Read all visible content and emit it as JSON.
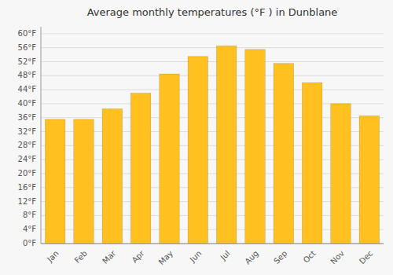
{
  "chart_data": {
    "type": "bar",
    "title": "Average monthly temperatures (°F ) in Dunblane",
    "categories": [
      "Jan",
      "Feb",
      "Mar",
      "Apr",
      "May",
      "Jun",
      "Jul",
      "Aug",
      "Sep",
      "Oct",
      "Nov",
      "Dec"
    ],
    "values": [
      35.5,
      35.5,
      38.5,
      43.0,
      48.5,
      53.5,
      56.5,
      55.5,
      51.5,
      46.0,
      40.0,
      36.5
    ],
    "color": "#FFC020",
    "ylim": [
      0,
      62
    ],
    "yticks": [
      {
        "value": 0,
        "label": "0°F"
      },
      {
        "value": 4,
        "label": "4°F"
      },
      {
        "value": 8,
        "label": "8°F"
      },
      {
        "value": 12,
        "label": "12°F"
      },
      {
        "value": 16,
        "label": "16°F"
      },
      {
        "value": 20,
        "label": "20°F"
      },
      {
        "value": 24,
        "label": "24°F"
      },
      {
        "value": 28,
        "label": "28°F"
      },
      {
        "value": 32,
        "label": "32°F"
      },
      {
        "value": 36,
        "label": "36°F"
      },
      {
        "value": 40,
        "label": "40°F"
      },
      {
        "value": 44,
        "label": "44°F"
      },
      {
        "value": 48,
        "label": "48°F"
      },
      {
        "value": 52,
        "label": "52°F"
      },
      {
        "value": 56,
        "label": "56°F"
      },
      {
        "value": 60,
        "label": "60°F"
      }
    ],
    "grid": true
  }
}
